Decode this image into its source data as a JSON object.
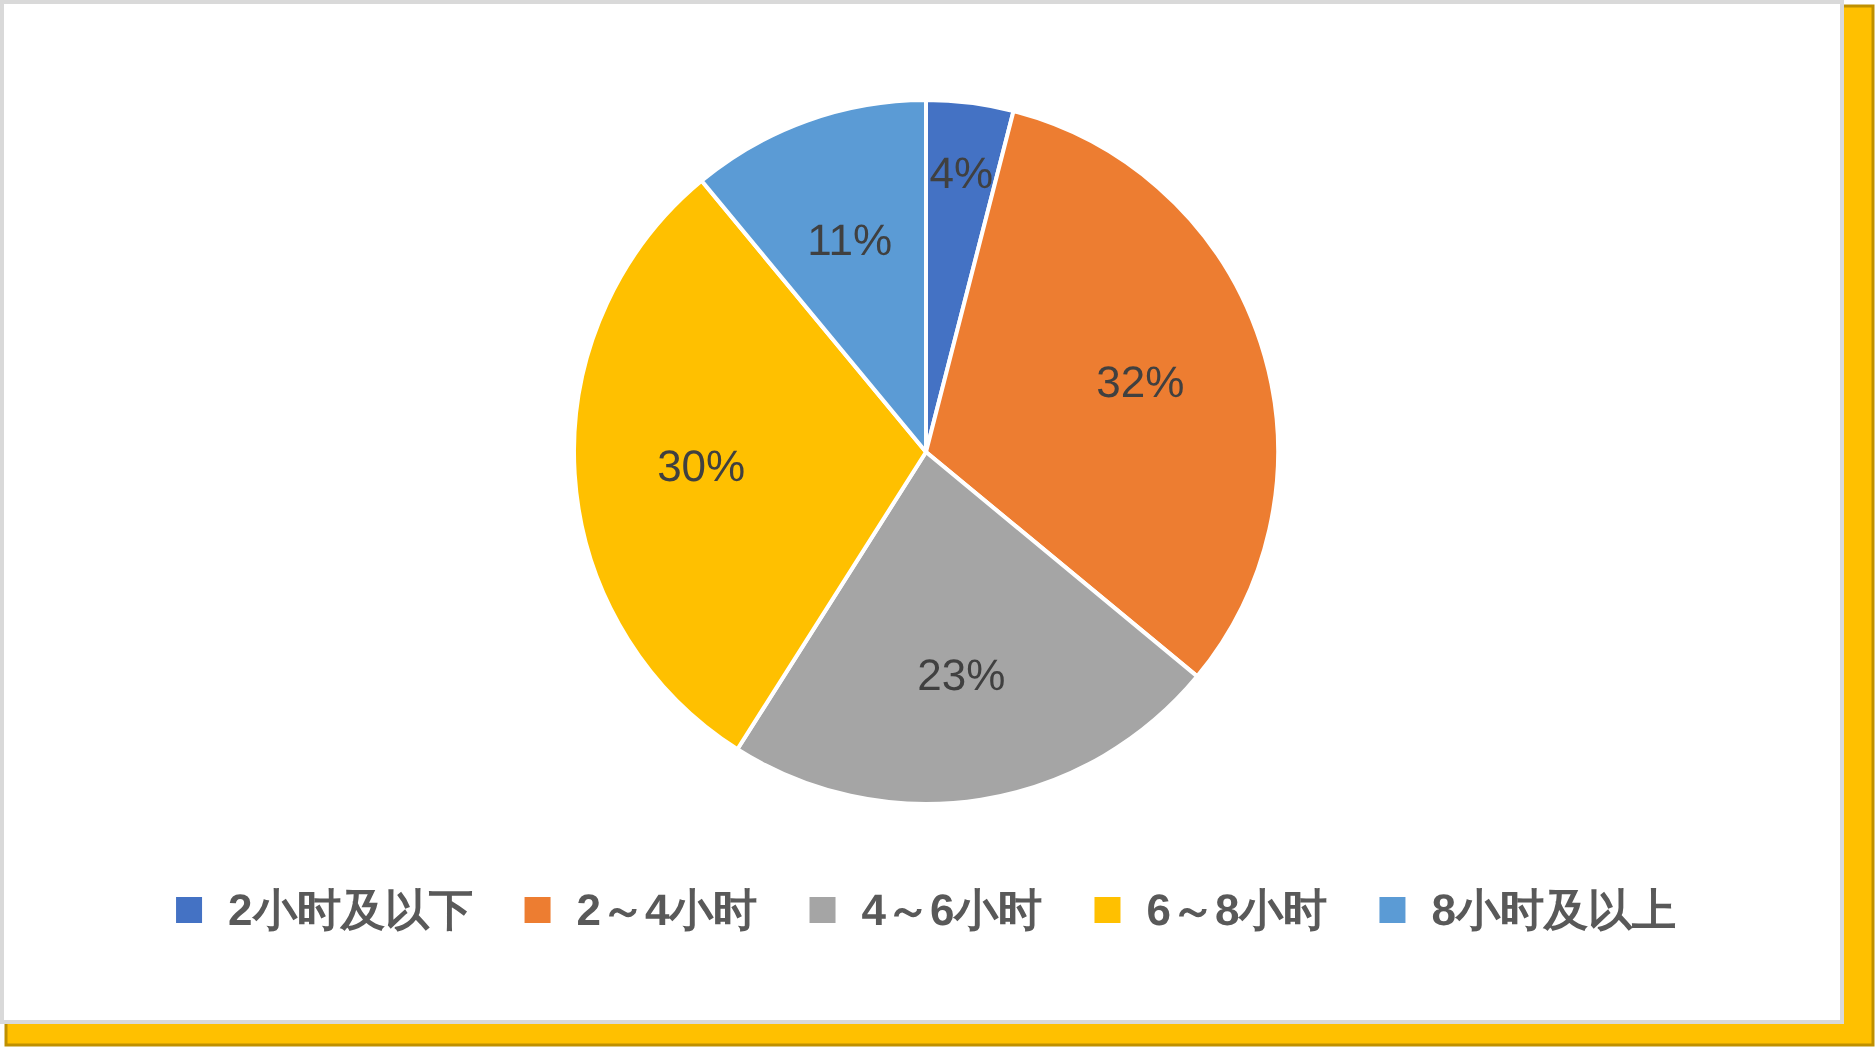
{
  "chart_data": {
    "type": "pie",
    "categories": [
      "2小时及以下",
      "2～4小时",
      "4～6小时",
      "6～8小时",
      "8小时及以上"
    ],
    "values": [
      4,
      32,
      23,
      30,
      11
    ],
    "colors": [
      "#4472c4",
      "#ed7d31",
      "#a5a5a5",
      "#ffc000",
      "#5b9bd5"
    ],
    "value_labels": [
      "4%",
      "32%",
      "23%",
      "30%",
      "11%"
    ],
    "legend": "bottom"
  }
}
